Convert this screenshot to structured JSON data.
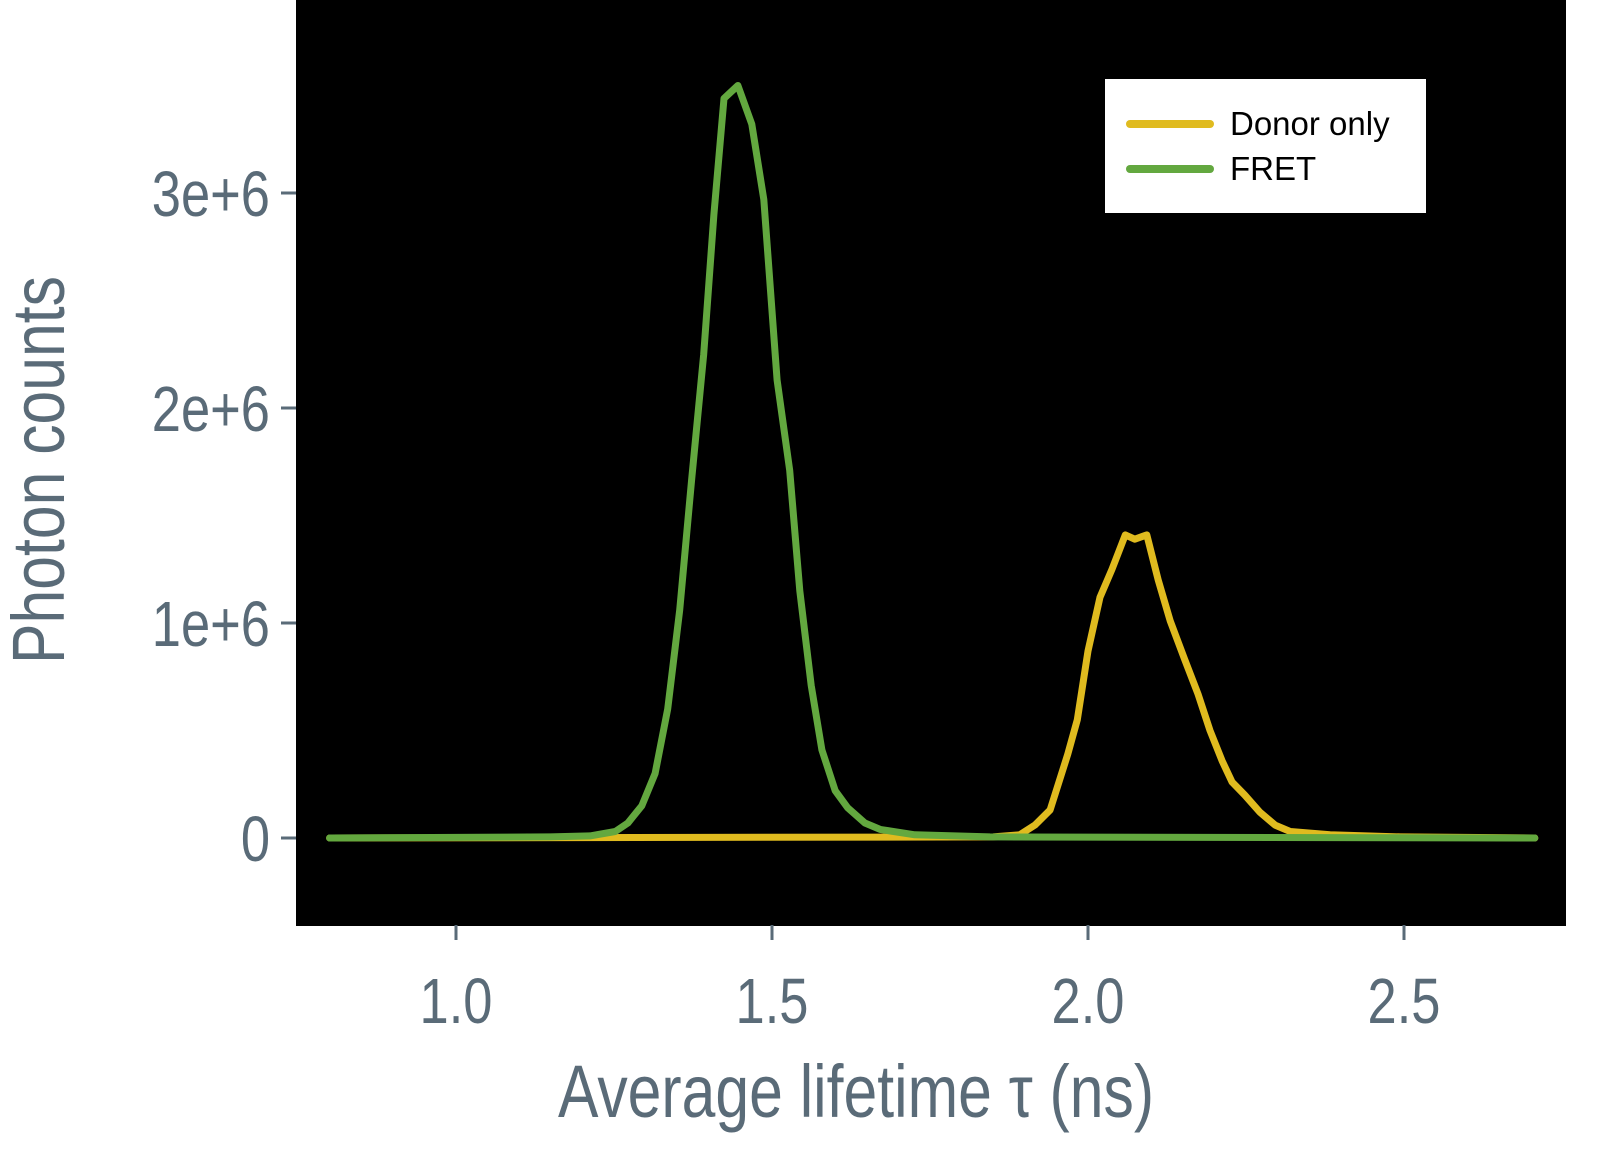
{
  "chart_data": {
    "type": "line",
    "title": "",
    "xlabel": "Average lifetime τ (ns)",
    "ylabel": "Photon counts",
    "xlim": [
      0.75,
      2.75
    ],
    "ylim": [
      -400000,
      3900000
    ],
    "xticks": [
      1.0,
      1.5,
      2.0,
      2.5
    ],
    "xtick_labels": [
      "1.0",
      "1.5",
      "2.0",
      "2.5"
    ],
    "yticks": [
      0,
      1000000,
      2000000,
      3000000
    ],
    "ytick_labels": [
      "0",
      "1e+6",
      "2e+6",
      "3e+6"
    ],
    "grid": false,
    "background": "#000000",
    "legend_position": "top-right",
    "series": [
      {
        "name": "Donor only",
        "color": "#e0bb1f",
        "x": [
          0.8,
          1.85,
          1.892,
          1.916,
          1.94,
          1.968,
          1.983,
          2.0,
          2.019,
          2.038,
          2.059,
          2.074,
          2.093,
          2.111,
          2.13,
          2.153,
          2.174,
          2.193,
          2.212,
          2.228,
          2.248,
          2.272,
          2.296,
          2.32,
          2.383,
          2.494,
          2.707
        ],
        "y": [
          0,
          5000,
          15000,
          60000,
          130000,
          390000,
          550000,
          870000,
          1120000,
          1250000,
          1410000,
          1390000,
          1410000,
          1200000,
          1010000,
          830000,
          670000,
          500000,
          360000,
          260000,
          200000,
          120000,
          60000,
          30000,
          15000,
          5000,
          0
        ]
      },
      {
        "name": "FRET",
        "color": "#63a83f",
        "x": [
          0.8,
          1.149,
          1.212,
          1.252,
          1.272,
          1.294,
          1.315,
          1.335,
          1.354,
          1.373,
          1.392,
          1.408,
          1.424,
          1.446,
          1.468,
          1.487,
          1.508,
          1.528,
          1.544,
          1.562,
          1.579,
          1.6,
          1.62,
          1.647,
          1.671,
          1.726,
          1.845,
          2.707
        ],
        "y": [
          0,
          5000,
          10000,
          30000,
          70000,
          150000,
          300000,
          600000,
          1060000,
          1670000,
          2250000,
          2900000,
          3440000,
          3500000,
          3320000,
          2970000,
          2130000,
          1710000,
          1150000,
          710000,
          410000,
          220000,
          140000,
          70000,
          40000,
          15000,
          5000,
          0
        ]
      }
    ]
  }
}
